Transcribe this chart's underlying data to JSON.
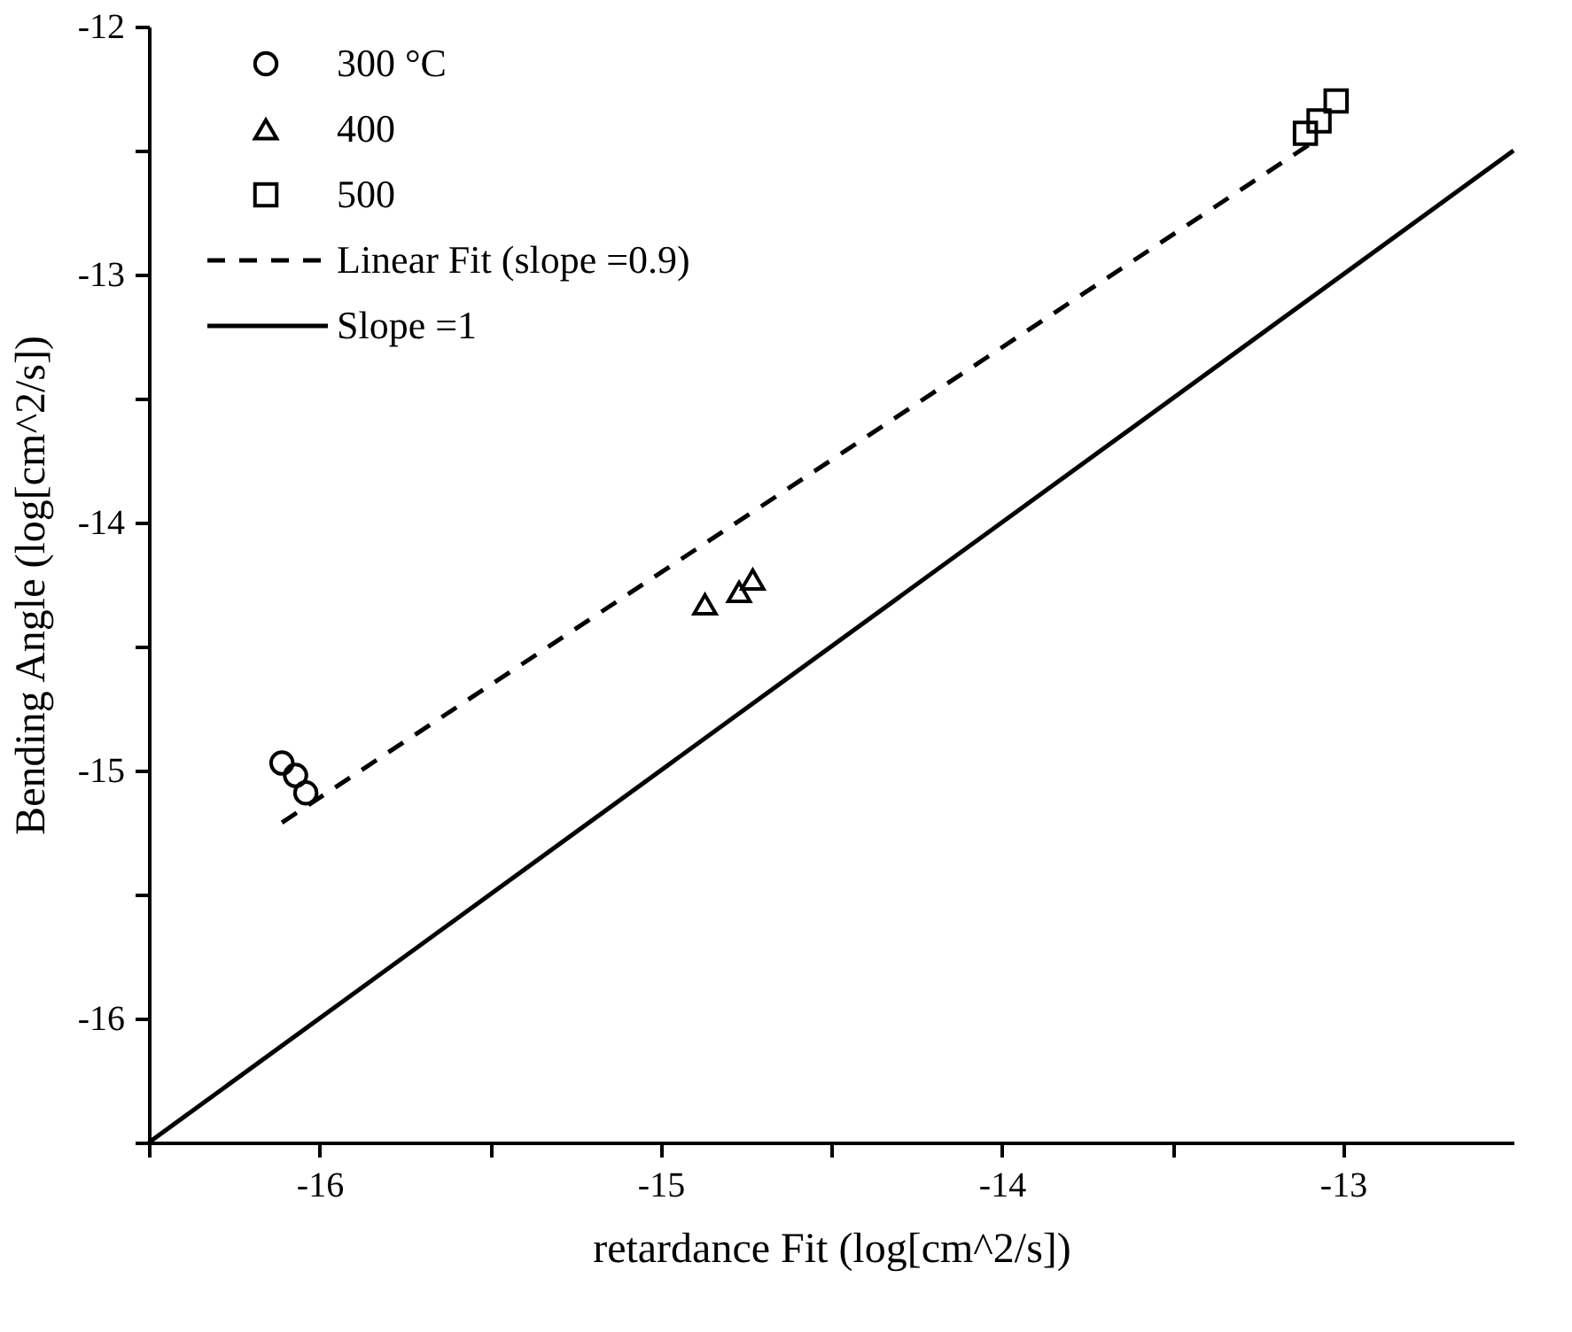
{
  "chart_data": {
    "type": "scatter",
    "xlabel": "retardance Fit (log[cm^2/s])",
    "ylabel": "Bending Angle (log[cm^2/s])",
    "xlim": [
      -16.5,
      -12.5
    ],
    "ylim": [
      -16.5,
      -12
    ],
    "xticks": [
      {
        "value": -16.5,
        "label": null
      },
      -16,
      {
        "value": -15.5,
        "label": null
      },
      -15,
      {
        "value": -14.5,
        "label": null
      },
      -14,
      {
        "value": -13.5,
        "label": null
      },
      -13
    ],
    "yticks": [
      {
        "value": -16.5,
        "label": null
      },
      -16,
      {
        "value": -15.5,
        "label": null
      },
      -15,
      {
        "value": -14.5,
        "label": null
      },
      -14,
      {
        "value": -13.5,
        "label": null
      },
      -13,
      {
        "value": -12.5,
        "label": null
      },
      -12
    ],
    "grid": false,
    "legend": "top left",
    "series": [
      {
        "name": "300 °C",
        "marker": "circle",
        "color": "#000000",
        "x": [
          -16.11,
          -16.07,
          -16.04
        ],
        "values": [
          -14.97,
          -15.02,
          -15.09
        ]
      },
      {
        "name": "400",
        "marker": "triangle",
        "color": "#000000",
        "x": [
          -14.87,
          -14.77,
          -14.73
        ],
        "values": [
          -14.33,
          -14.28,
          -14.23
        ]
      },
      {
        "name": "500",
        "marker": "square",
        "color": "#000000",
        "x": [
          -13.11,
          -13.07,
          -13.02
        ],
        "values": [
          -12.43,
          -12.38,
          -12.3
        ]
      },
      {
        "name": "Linear Fit (slope =0.9)",
        "type": "line",
        "line_style": "dashed",
        "color": "#000000",
        "x": [
          -16.11,
          -13.07
        ],
        "values": [
          -15.21,
          -12.45
        ]
      },
      {
        "name": "Slope =1",
        "type": "line",
        "line_style": "solid",
        "color": "#000000",
        "x": [
          -16.5,
          -12.5
        ],
        "values": [
          -16.5,
          -12.5
        ]
      }
    ]
  }
}
